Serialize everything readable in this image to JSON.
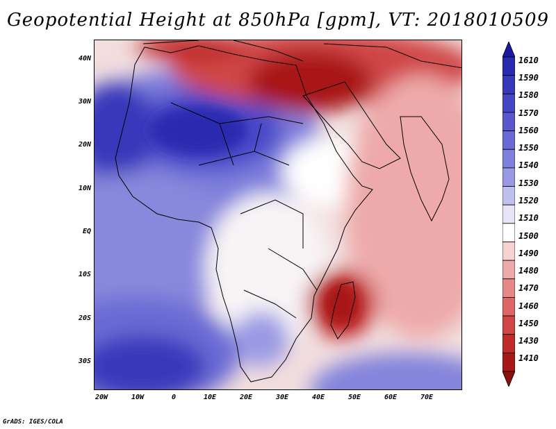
{
  "title": "Geopotential Height at 850hPa [gpm], VT: 2018010509",
  "footer": "GrADS: IGES/COLA",
  "lat_labels": [
    "40N",
    "30N",
    "20N",
    "10N",
    "EQ",
    "10S",
    "20S",
    "30S"
  ],
  "lat_values": [
    40,
    30,
    20,
    10,
    0,
    -10,
    -20,
    -30
  ],
  "lon_labels": [
    "20W",
    "10W",
    "0",
    "10E",
    "20E",
    "30E",
    "40E",
    "50E",
    "60E",
    "70E"
  ],
  "lon_values": [
    -20,
    -10,
    0,
    10,
    20,
    30,
    40,
    50,
    60,
    70
  ],
  "domain": {
    "lon_min": -22,
    "lon_max": 80,
    "lat_min": -36,
    "lat_max": 45
  },
  "colorbar": {
    "labels": [
      "1610",
      "1590",
      "1580",
      "1570",
      "1560",
      "1550",
      "1540",
      "1530",
      "1520",
      "1510",
      "1500",
      "1490",
      "1480",
      "1470",
      "1460",
      "1450",
      "1430",
      "1410"
    ],
    "colors": [
      "#1a1a9e",
      "#2a2ab0",
      "#3838bb",
      "#4646c4",
      "#5858cc",
      "#6a6ad4",
      "#7e7edc",
      "#9a9ae4",
      "#c0c0ee",
      "#e6e6f8",
      "#ffffff",
      "#f6d2d2",
      "#eeaaaa",
      "#e68888",
      "#de6666",
      "#d04646",
      "#c02c2c",
      "#a81818",
      "#8e0e0e"
    ]
  }
}
